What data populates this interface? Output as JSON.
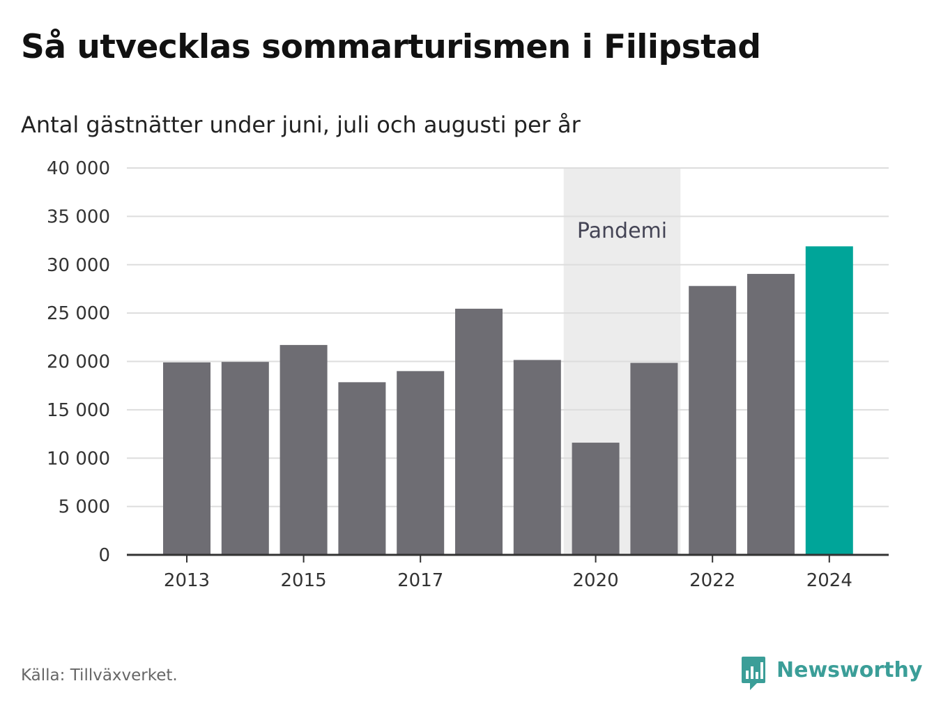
{
  "header": {
    "title": "Så utvecklas sommarturismen i Filipstad",
    "subtitle": "Antal gästnätter under juni, juli och augusti per år"
  },
  "footer": {
    "source": "Källa: Tillväxverket.",
    "brand": "Newsworthy",
    "brand_icon": "newsworthy-logo-icon"
  },
  "colors": {
    "bar": "#6e6d73",
    "highlight": "#00a599",
    "shade": "#ececec",
    "grid": "#dddddd",
    "axis": "#333333",
    "text": "#333333",
    "annotation": "#444455",
    "brand": "#3b9e98"
  },
  "chart_data": {
    "type": "bar",
    "categories": [
      "2013",
      "2014",
      "2015",
      "2016",
      "2017",
      "2018",
      "2019",
      "2020",
      "2021",
      "2022",
      "2023",
      "2024"
    ],
    "values": [
      19900,
      19950,
      21700,
      17850,
      19000,
      25450,
      20150,
      11600,
      19850,
      27800,
      29050,
      31900
    ],
    "highlight_category": "2024",
    "x_tick_labels": [
      "2013",
      "2015",
      "2017",
      "2020",
      "2022",
      "2024"
    ],
    "y_ticks": [
      0,
      5000,
      10000,
      15000,
      20000,
      25000,
      30000,
      35000,
      40000
    ],
    "y_tick_labels": [
      "0",
      "5 000",
      "10 000",
      "15 000",
      "20 000",
      "25 000",
      "30 000",
      "35 000",
      "40 000"
    ],
    "ylim": [
      0,
      40000
    ],
    "xlabel": "",
    "ylabel": "",
    "grid": true,
    "annotations": [
      {
        "label": "Pandemi",
        "from": "2020",
        "to": "2021"
      }
    ]
  }
}
